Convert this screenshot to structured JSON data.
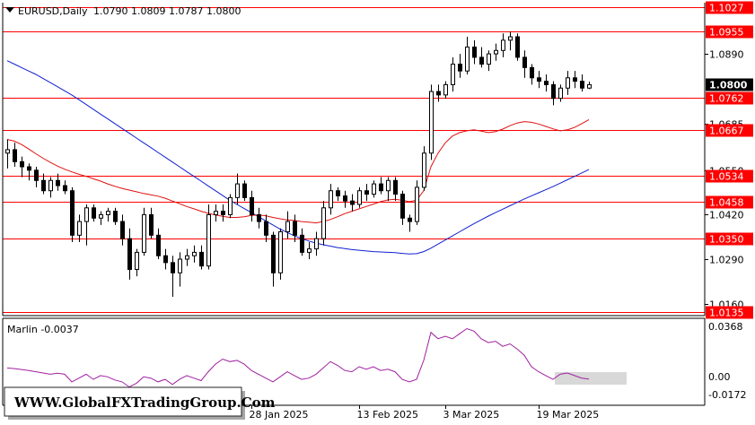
{
  "header": {
    "symbol": "EURUSD,Daily",
    "ohlc": "1.0790 1.0809 1.0787 1.0800"
  },
  "indicator": {
    "label": "Marlin -0.0037",
    "ticks": [
      "0.0368",
      "0.00",
      "-0.0172"
    ]
  },
  "watermark": "WWW.GlobalFXTradingGroup.Com",
  "colors": {
    "level": "#ff0000",
    "candle_up": "#ffffff",
    "candle_down": "#000000",
    "ma_fast": "#e01010",
    "ma_slow": "#1020d0",
    "marlin": "#a020a0",
    "current": "#000000"
  },
  "chart_data": {
    "type": "candlestick",
    "ylim": [
      1.0125,
      1.1037
    ],
    "x_labels": [
      {
        "index": 34,
        "text": "28 Jan 2025"
      },
      {
        "index": 49,
        "text": "13 Feb 2025"
      },
      {
        "index": 61,
        "text": "3 Mar 2025"
      },
      {
        "index": 74,
        "text": "19 Mar 2025"
      }
    ],
    "y_ticks": [
      "1.0890",
      "1.0685",
      "1.0550",
      "1.0420",
      "1.0290",
      "1.0160"
    ],
    "levels": [
      "1.1027",
      "1.0955",
      "1.0762",
      "1.0667",
      "1.0534",
      "1.0458",
      "1.0350",
      "1.0135"
    ],
    "current_price": "1.0800",
    "ohlc": [
      [
        1.06,
        1.064,
        1.0555,
        1.061
      ],
      [
        1.061,
        1.063,
        1.056,
        1.0575
      ],
      [
        1.0575,
        1.059,
        1.053,
        1.056
      ],
      [
        1.056,
        1.057,
        1.052,
        1.055
      ],
      [
        1.055,
        1.056,
        1.05,
        1.052
      ],
      [
        1.052,
        1.054,
        1.048,
        1.049
      ],
      [
        1.049,
        1.053,
        1.047,
        1.052
      ],
      [
        1.052,
        1.054,
        1.049,
        1.0505
      ],
      [
        1.0505,
        1.052,
        1.048,
        1.049
      ],
      [
        1.049,
        1.05,
        1.034,
        1.036
      ],
      [
        1.036,
        1.042,
        1.034,
        1.04
      ],
      [
        1.04,
        1.045,
        1.033,
        1.044
      ],
      [
        1.044,
        1.045,
        1.04,
        1.041
      ],
      [
        1.041,
        1.043,
        1.039,
        1.042
      ],
      [
        1.042,
        1.044,
        1.04,
        1.043
      ],
      [
        1.043,
        1.044,
        1.039,
        1.04
      ],
      [
        1.04,
        1.042,
        1.033,
        1.035
      ],
      [
        1.035,
        1.038,
        1.023,
        1.026
      ],
      [
        1.026,
        1.032,
        1.024,
        1.031
      ],
      [
        1.031,
        1.044,
        1.03,
        1.042
      ],
      [
        1.042,
        1.044,
        1.035,
        1.036
      ],
      [
        1.036,
        1.038,
        1.029,
        1.03
      ],
      [
        1.03,
        1.032,
        1.026,
        1.028
      ],
      [
        1.028,
        1.03,
        1.018,
        1.025
      ],
      [
        1.025,
        1.031,
        1.021,
        1.029
      ],
      [
        1.029,
        1.032,
        1.027,
        1.03
      ],
      [
        1.03,
        1.033,
        1.028,
        1.031
      ],
      [
        1.031,
        1.033,
        1.026,
        1.027
      ],
      [
        1.027,
        1.045,
        1.026,
        1.042
      ],
      [
        1.042,
        1.045,
        1.04,
        1.043
      ],
      [
        1.043,
        1.045,
        1.04,
        1.042
      ],
      [
        1.042,
        1.048,
        1.041,
        1.047
      ],
      [
        1.047,
        1.054,
        1.045,
        1.051
      ],
      [
        1.051,
        1.052,
        1.046,
        1.047
      ],
      [
        1.047,
        1.049,
        1.04,
        1.042
      ],
      [
        1.042,
        1.044,
        1.038,
        1.04
      ],
      [
        1.04,
        1.042,
        1.034,
        1.036
      ],
      [
        1.036,
        1.037,
        1.021,
        1.025
      ],
      [
        1.025,
        1.038,
        1.023,
        1.037
      ],
      [
        1.037,
        1.043,
        1.035,
        1.04
      ],
      [
        1.04,
        1.042,
        1.034,
        1.036
      ],
      [
        1.036,
        1.038,
        1.03,
        1.031
      ],
      [
        1.031,
        1.034,
        1.029,
        1.032
      ],
      [
        1.032,
        1.037,
        1.03,
        1.035
      ],
      [
        1.035,
        1.046,
        1.033,
        1.044
      ],
      [
        1.044,
        1.051,
        1.042,
        1.049
      ],
      [
        1.049,
        1.05,
        1.046,
        1.0475
      ],
      [
        1.0475,
        1.049,
        1.044,
        1.046
      ],
      [
        1.046,
        1.048,
        1.043,
        1.045
      ],
      [
        1.045,
        1.05,
        1.044,
        1.049
      ],
      [
        1.049,
        1.051,
        1.046,
        1.048
      ],
      [
        1.048,
        1.052,
        1.047,
        1.051
      ],
      [
        1.051,
        1.053,
        1.048,
        1.049
      ],
      [
        1.049,
        1.053,
        1.046,
        1.052
      ],
      [
        1.052,
        1.053,
        1.046,
        1.048
      ],
      [
        1.048,
        1.049,
        1.039,
        1.041
      ],
      [
        1.041,
        1.042,
        1.037,
        1.04
      ],
      [
        1.04,
        1.052,
        1.039,
        1.05
      ],
      [
        1.05,
        1.062,
        1.049,
        1.06
      ],
      [
        1.06,
        1.08,
        1.058,
        1.078
      ],
      [
        1.078,
        1.08,
        1.075,
        1.077
      ],
      [
        1.077,
        1.081,
        1.076,
        1.08
      ],
      [
        1.08,
        1.088,
        1.078,
        1.086
      ],
      [
        1.086,
        1.089,
        1.082,
        1.084
      ],
      [
        1.084,
        1.094,
        1.083,
        1.091
      ],
      [
        1.091,
        1.093,
        1.086,
        1.088
      ],
      [
        1.088,
        1.091,
        1.085,
        1.086
      ],
      [
        1.086,
        1.09,
        1.084,
        1.089
      ],
      [
        1.089,
        1.092,
        1.087,
        1.09
      ],
      [
        1.09,
        1.095,
        1.088,
        1.093
      ],
      [
        1.093,
        1.0955,
        1.09,
        1.094
      ],
      [
        1.094,
        1.095,
        1.087,
        1.088
      ],
      [
        1.088,
        1.09,
        1.082,
        1.085
      ],
      [
        1.085,
        1.086,
        1.08,
        1.082
      ],
      [
        1.082,
        1.084,
        1.079,
        1.081
      ],
      [
        1.081,
        1.083,
        1.078,
        1.08
      ],
      [
        1.08,
        1.081,
        1.074,
        1.076
      ],
      [
        1.076,
        1.08,
        1.075,
        1.079
      ],
      [
        1.079,
        1.084,
        1.077,
        1.082
      ],
      [
        1.082,
        1.084,
        1.079,
        1.081
      ],
      [
        1.081,
        1.083,
        1.078,
        1.079
      ],
      [
        1.079,
        1.0809,
        1.0787,
        1.08
      ]
    ],
    "ma_fast": [
      1.064,
      1.0635,
      1.0625,
      1.0612,
      1.0598,
      1.0585,
      1.0573,
      1.0562,
      1.0553,
      1.0545,
      1.0538,
      1.0532,
      1.0525,
      1.0518,
      1.051,
      1.0503,
      1.0497,
      1.0492,
      1.0487,
      1.0482,
      1.0478,
      1.0474,
      1.0468,
      1.046,
      1.0452,
      1.0444,
      1.0437,
      1.043,
      1.0424,
      1.0419,
      1.0415,
      1.0412,
      1.0412,
      1.0414,
      1.0418,
      1.0419,
      1.0417,
      1.0412,
      1.0408,
      1.0405,
      1.0403,
      1.04,
      1.0398,
      1.0396,
      1.04,
      1.0406,
      1.0414,
      1.0423,
      1.043,
      1.0437,
      1.0444,
      1.0451,
      1.0458,
      1.0463,
      1.0465,
      1.0462,
      1.0458,
      1.0462,
      1.049,
      1.056,
      1.06,
      1.063,
      1.065,
      1.066,
      1.0665,
      1.0668,
      1.0664,
      1.066,
      1.0663,
      1.067,
      1.068,
      1.0688,
      1.0692,
      1.069,
      1.0685,
      1.0678,
      1.0671,
      1.0665,
      1.0668,
      1.0675,
      1.0686,
      1.0698
    ],
    "ma_slow": [
      1.087,
      1.086,
      1.085,
      1.084,
      1.083,
      1.0818,
      1.0806,
      1.0794,
      1.0782,
      1.077,
      1.0756,
      1.0742,
      1.0728,
      1.0714,
      1.07,
      1.0686,
      1.0672,
      1.0658,
      1.0644,
      1.063,
      1.0616,
      1.0602,
      1.0588,
      1.0574,
      1.056,
      1.0546,
      1.0532,
      1.0518,
      1.0504,
      1.049,
      1.0476,
      1.0462,
      1.045,
      1.0438,
      1.0426,
      1.0414,
      1.0402,
      1.039,
      1.0378,
      1.0368,
      1.0358,
      1.035,
      1.0343,
      1.0337,
      1.0332,
      1.0328,
      1.0324,
      1.0321,
      1.0318,
      1.0316,
      1.0314,
      1.0312,
      1.0311,
      1.031,
      1.0309,
      1.0307,
      1.0305,
      1.0306,
      1.0312,
      1.0322,
      1.0334,
      1.0346,
      1.0358,
      1.037,
      1.0382,
      1.0394,
      1.0405,
      1.0416,
      1.0426,
      1.0436,
      1.0446,
      1.0456,
      1.0466,
      1.0475,
      1.0484,
      1.0493,
      1.0502,
      1.0512,
      1.0522,
      1.0532,
      1.0542,
      1.0552
    ],
    "marlin_ylim": [
      -0.023,
      0.042
    ],
    "marlin_values": [
      0.005,
      0.0045,
      0.0038,
      0.003,
      0.002,
      0.001,
      0.0,
      0.0008,
      0.0,
      -0.006,
      -0.003,
      0.0,
      -0.004,
      -0.001,
      -0.002,
      -0.0045,
      -0.006,
      -0.01,
      -0.007,
      -0.002,
      -0.003,
      -0.006,
      -0.004,
      -0.008,
      -0.004,
      -0.001,
      -0.003,
      -0.005,
      0.002,
      0.008,
      0.012,
      0.01,
      0.011,
      0.008,
      0.003,
      0.0,
      -0.003,
      -0.006,
      -0.002,
      0.002,
      -0.001,
      -0.004,
      -0.003,
      0.0,
      0.005,
      0.01,
      0.007,
      0.003,
      0.002,
      0.006,
      0.004,
      0.006,
      0.003,
      0.004,
      0.002,
      -0.004,
      -0.006,
      -0.004,
      0.011,
      0.033,
      0.028,
      0.03,
      0.028,
      0.032,
      0.036,
      0.034,
      0.028,
      0.025,
      0.026,
      0.022,
      0.024,
      0.02,
      0.015,
      0.006,
      0.002,
      -0.001,
      -0.004,
      0.0,
      0.001,
      -0.001,
      -0.003,
      -0.0037
    ]
  }
}
